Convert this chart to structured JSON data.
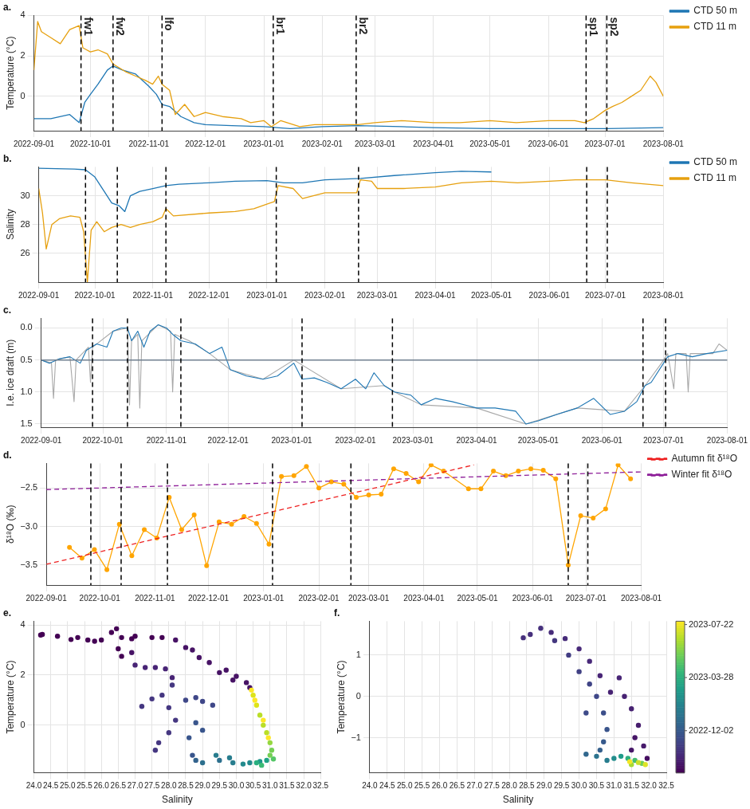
{
  "chart_data": [
    {
      "type": "line",
      "title": "a.",
      "ylabel": "Temperature (°C)",
      "xlim": [
        "2022-09-01",
        "2023-08-01"
      ],
      "xticks": [
        "2022-09-01",
        "2022-10-01",
        "2022-11-01",
        "2022-12-01",
        "2023-01-01",
        "2023-02-01",
        "2023-03-01",
        "2023-04-01",
        "2023-05-01",
        "2023-06-01",
        "2023-07-01",
        "2023-08-01"
      ],
      "ylim": [
        -1.7,
        4
      ],
      "yticks": [
        0,
        2,
        4
      ],
      "grid": true,
      "legend": "top right",
      "series": [
        {
          "name": "CTD 50 m",
          "color": "#1f77b4",
          "x": [
            "2022-09-01",
            "2022-09-10",
            "2022-09-20",
            "2022-09-25",
            "2022-09-28",
            "2022-10-01",
            "2022-10-05",
            "2022-10-10",
            "2022-10-13",
            "2022-10-18",
            "2022-10-25",
            "2022-11-01",
            "2022-11-05",
            "2022-11-08",
            "2022-11-12",
            "2022-11-18",
            "2022-11-25",
            "2022-12-01",
            "2022-12-15",
            "2023-01-01",
            "2023-01-15",
            "2023-02-01",
            "2023-02-20",
            "2023-03-15",
            "2023-04-01",
            "2023-05-01",
            "2023-06-01",
            "2023-07-01",
            "2023-08-01"
          ],
          "values": [
            -1.1,
            -1.1,
            -0.9,
            -1.3,
            -0.3,
            0.1,
            0.6,
            1.3,
            1.5,
            1.3,
            1.1,
            0.5,
            0.1,
            -0.4,
            -0.5,
            -1.0,
            -1.3,
            -1.4,
            -1.45,
            -1.5,
            -1.6,
            -1.5,
            -1.45,
            -1.5,
            -1.55,
            -1.6,
            -1.6,
            -1.6,
            -1.55
          ]
        },
        {
          "name": "CTD 11 m",
          "color": "#e6a00f",
          "x": [
            "2022-09-01",
            "2022-09-03",
            "2022-09-05",
            "2022-09-10",
            "2022-09-15",
            "2022-09-20",
            "2022-09-25",
            "2022-09-27",
            "2022-10-01",
            "2022-10-05",
            "2022-10-10",
            "2022-10-13",
            "2022-10-20",
            "2022-10-25",
            "2022-10-30",
            "2022-11-03",
            "2022-11-06",
            "2022-11-08",
            "2022-11-12",
            "2022-11-15",
            "2022-11-20",
            "2022-11-25",
            "2022-12-01",
            "2022-12-10",
            "2022-12-20",
            "2022-12-25",
            "2023-01-01",
            "2023-01-05",
            "2023-01-10",
            "2023-01-20",
            "2023-01-28",
            "2023-02-10",
            "2023-02-20",
            "2023-03-01",
            "2023-03-15",
            "2023-04-01",
            "2023-04-15",
            "2023-05-01",
            "2023-05-15",
            "2023-06-01",
            "2023-06-15",
            "2023-06-20",
            "2023-06-25",
            "2023-07-01",
            "2023-07-05",
            "2023-07-10",
            "2023-07-15",
            "2023-07-20",
            "2023-07-25",
            "2023-07-28",
            "2023-08-01"
          ],
          "values": [
            1.3,
            3.7,
            3.2,
            2.9,
            2.6,
            3.3,
            3.5,
            2.4,
            2.2,
            2.3,
            2.1,
            1.6,
            1.2,
            1.0,
            0.8,
            0.6,
            1.0,
            0.6,
            0.3,
            -0.9,
            -0.4,
            -1.0,
            -0.8,
            -1.0,
            -1.1,
            -1.3,
            -1.2,
            -1.5,
            -1.2,
            -1.5,
            -1.4,
            -1.4,
            -1.4,
            -1.3,
            -1.2,
            -1.3,
            -1.3,
            -1.2,
            -1.3,
            -1.2,
            -1.2,
            -1.3,
            -1.1,
            -0.7,
            -0.5,
            -0.3,
            0.0,
            0.3,
            1.0,
            0.7,
            0.0
          ]
        }
      ],
      "ref_lines": [
        {
          "axis": "x",
          "value": "2022-09-26",
          "label": "fw1",
          "color": "#000000",
          "line_style": "dashed"
        },
        {
          "axis": "x",
          "value": "2022-10-13",
          "label": "fw2",
          "color": "#000000",
          "line_style": "dashed"
        },
        {
          "axis": "x",
          "value": "2022-11-08",
          "label": "lfo",
          "color": "#000000",
          "line_style": "dashed"
        },
        {
          "axis": "x",
          "value": "2023-01-06",
          "label": "br1",
          "color": "#000000",
          "line_style": "dashed"
        },
        {
          "axis": "x",
          "value": "2023-02-19",
          "label": "br2",
          "color": "#000000",
          "line_style": "dashed"
        },
        {
          "axis": "x",
          "value": "2023-06-21",
          "label": "sp1",
          "color": "#000000",
          "line_style": "dashed"
        },
        {
          "axis": "x",
          "value": "2023-07-02",
          "label": "sp2",
          "color": "#000000",
          "line_style": "dashed"
        }
      ]
    },
    {
      "type": "line",
      "title": "b.",
      "ylabel": "Salinity",
      "xlim": [
        "2022-09-01",
        "2023-08-01"
      ],
      "xticks": [
        "2022-09-01",
        "2022-10-01",
        "2022-11-01",
        "2022-12-01",
        "2023-01-01",
        "2023-02-01",
        "2023-03-01",
        "2023-04-01",
        "2023-05-01",
        "2023-06-01",
        "2023-07-01",
        "2023-08-01"
      ],
      "ylim": [
        24,
        32
      ],
      "yticks": [
        26,
        28,
        30
      ],
      "grid": true,
      "legend": "top right",
      "series": [
        {
          "name": "CTD 50 m",
          "color": "#1f77b4",
          "x": [
            "2022-09-01",
            "2022-09-20",
            "2022-09-26",
            "2022-10-01",
            "2022-10-06",
            "2022-10-10",
            "2022-10-14",
            "2022-10-17",
            "2022-10-20",
            "2022-10-25",
            "2022-11-01",
            "2022-11-08",
            "2022-11-15",
            "2022-12-01",
            "2022-12-15",
            "2023-01-01",
            "2023-01-10",
            "2023-01-20",
            "2023-02-01",
            "2023-02-20",
            "2023-03-10",
            "2023-04-01",
            "2023-04-15",
            "2023-05-01"
          ],
          "values": [
            31.9,
            31.85,
            31.8,
            31.3,
            30.3,
            29.5,
            29.3,
            28.9,
            30.0,
            30.3,
            30.5,
            30.7,
            30.8,
            30.9,
            31.0,
            31.05,
            30.9,
            30.9,
            31.1,
            31.2,
            31.4,
            31.6,
            31.7,
            31.65
          ]
        },
        {
          "name": "CTD 11 m",
          "color": "#e6a00f",
          "x": [
            "2022-09-01",
            "2022-09-03",
            "2022-09-05",
            "2022-09-08",
            "2022-09-12",
            "2022-09-18",
            "2022-09-23",
            "2022-09-25",
            "2022-09-27",
            "2022-09-29",
            "2022-10-02",
            "2022-10-06",
            "2022-10-10",
            "2022-10-15",
            "2022-10-20",
            "2022-10-25",
            "2022-11-01",
            "2022-11-06",
            "2022-11-08",
            "2022-11-12",
            "2022-12-01",
            "2022-12-15",
            "2022-12-25",
            "2023-01-05",
            "2023-01-07",
            "2023-01-15",
            "2023-01-20",
            "2023-02-01",
            "2023-02-18",
            "2023-02-20",
            "2023-02-26",
            "2023-03-01",
            "2023-03-15",
            "2023-04-01",
            "2023-04-15",
            "2023-05-01",
            "2023-05-15",
            "2023-06-01",
            "2023-06-15",
            "2023-07-01",
            "2023-07-15",
            "2023-08-01"
          ],
          "values": [
            30.5,
            28.8,
            26.3,
            28.0,
            28.4,
            28.6,
            28.5,
            27.5,
            24.0,
            27.6,
            28.2,
            27.5,
            27.8,
            28.0,
            27.8,
            28.0,
            28.2,
            28.5,
            29.1,
            28.6,
            28.8,
            28.9,
            29.1,
            29.6,
            30.7,
            30.5,
            29.8,
            30.2,
            30.2,
            31.1,
            31.0,
            30.5,
            30.5,
            30.6,
            30.9,
            31.0,
            30.9,
            31.0,
            31.1,
            31.1,
            30.9,
            30.7
          ]
        }
      ],
      "ref_lines": [
        {
          "axis": "x",
          "value": "2022-09-26",
          "color": "#000000",
          "line_style": "dashed"
        },
        {
          "axis": "x",
          "value": "2022-10-13",
          "color": "#000000",
          "line_style": "dashed"
        },
        {
          "axis": "x",
          "value": "2022-11-08",
          "color": "#000000",
          "line_style": "dashed"
        },
        {
          "axis": "x",
          "value": "2023-01-06",
          "color": "#000000",
          "line_style": "dashed"
        },
        {
          "axis": "x",
          "value": "2023-02-19",
          "color": "#000000",
          "line_style": "dashed"
        },
        {
          "axis": "x",
          "value": "2023-06-21",
          "color": "#000000",
          "line_style": "dashed"
        },
        {
          "axis": "x",
          "value": "2023-07-02",
          "color": "#000000",
          "line_style": "dashed"
        }
      ]
    },
    {
      "type": "line",
      "title": "c.",
      "ylabel": "I.e. ice draft (m)",
      "xlim": [
        "2022-09-01",
        "2023-08-01"
      ],
      "xticks": [
        "2022-09-01",
        "2022-10-01",
        "2022-11-01",
        "2022-12-01",
        "2023-01-01",
        "2023-02-01",
        "2023-03-01",
        "2023-04-01",
        "2023-05-01",
        "2023-06-01",
        "2023-07-01",
        "2023-08-01"
      ],
      "ylim": [
        1.55,
        -0.15
      ],
      "yticks": [
        {
          "value": 0,
          "label": "0.0"
        },
        0.5,
        {
          "value": 1,
          "label": "1.0"
        },
        1.5
      ],
      "grid": true,
      "series": [
        {
          "color": "#a8a8a8",
          "x": [
            "2022-09-01",
            "2022-09-06",
            "2022-09-07",
            "2022-09-08",
            "2022-09-15",
            "2022-09-17",
            "2022-09-18",
            "2022-09-24",
            "2022-09-25",
            "2022-09-26",
            "2022-10-06",
            "2022-10-13",
            "2022-10-14",
            "2022-10-15",
            "2022-10-18",
            "2022-10-19",
            "2022-10-20",
            "2022-10-28",
            "2022-11-03",
            "2022-11-04",
            "2022-11-05",
            "2022-11-12",
            "2022-11-22",
            "2022-12-02",
            "2022-12-18",
            "2023-01-02",
            "2023-01-25",
            "2023-02-15",
            "2023-02-20",
            "2023-03-05",
            "2023-04-01",
            "2023-04-25",
            "2023-05-20",
            "2023-06-12",
            "2023-06-22",
            "2023-06-30",
            "2023-07-03",
            "2023-07-06",
            "2023-07-07",
            "2023-07-12",
            "2023-07-13",
            "2023-07-14",
            "2023-07-25",
            "2023-07-28",
            "2023-08-01"
          ],
          "values": [
            0.5,
            0.55,
            1.1,
            0.5,
            0.45,
            1.15,
            0.5,
            0.3,
            0.85,
            0.3,
            0.05,
            0.0,
            1.2,
            0.2,
            0.1,
            1.25,
            0.2,
            -0.05,
            0.05,
            1.0,
            0.1,
            0.2,
            0.4,
            0.65,
            0.8,
            0.5,
            0.95,
            0.9,
            1.0,
            1.2,
            1.25,
            1.5,
            1.25,
            1.3,
            0.9,
            0.55,
            0.4,
            0.95,
            0.4,
            0.4,
            1.0,
            0.4,
            0.4,
            0.25,
            0.35
          ]
        },
        {
          "color": "#1f77b4",
          "x": [
            "2022-09-01",
            "2022-09-05",
            "2022-09-10",
            "2022-09-15",
            "2022-09-20",
            "2022-09-23",
            "2022-09-28",
            "2022-10-03",
            "2022-10-06",
            "2022-10-10",
            "2022-10-13",
            "2022-10-15",
            "2022-10-18",
            "2022-10-21",
            "2022-10-24",
            "2022-10-28",
            "2022-11-01",
            "2022-11-04",
            "2022-11-08",
            "2022-11-15",
            "2022-11-22",
            "2022-11-28",
            "2022-12-02",
            "2022-12-10",
            "2022-12-18",
            "2022-12-25",
            "2023-01-02",
            "2023-01-06",
            "2023-01-12",
            "2023-01-18",
            "2023-01-25",
            "2023-02-01",
            "2023-02-06",
            "2023-02-10",
            "2023-02-15",
            "2023-02-20",
            "2023-02-28",
            "2023-03-05",
            "2023-03-12",
            "2023-03-20",
            "2023-04-01",
            "2023-04-10",
            "2023-04-20",
            "2023-04-25",
            "2023-05-01",
            "2023-05-10",
            "2023-05-20",
            "2023-05-28",
            "2023-06-05",
            "2023-06-12",
            "2023-06-18",
            "2023-06-22",
            "2023-06-25",
            "2023-06-30",
            "2023-07-03",
            "2023-07-08",
            "2023-07-15",
            "2023-07-22",
            "2023-08-01"
          ],
          "values": [
            0.5,
            0.55,
            0.48,
            0.45,
            0.55,
            0.35,
            0.25,
            0.3,
            0.05,
            0.0,
            0.0,
            0.2,
            0.05,
            0.3,
            0.05,
            -0.05,
            0.0,
            0.1,
            0.2,
            0.25,
            0.4,
            0.3,
            0.65,
            0.75,
            0.8,
            0.75,
            0.55,
            0.8,
            0.78,
            0.85,
            0.95,
            0.8,
            0.95,
            0.7,
            0.9,
            1.0,
            1.05,
            1.2,
            1.1,
            1.15,
            1.25,
            1.25,
            1.3,
            1.5,
            1.45,
            1.35,
            1.25,
            1.1,
            1.35,
            1.3,
            1.15,
            0.9,
            0.85,
            0.6,
            0.45,
            0.4,
            0.45,
            0.4,
            0.35
          ]
        }
      ],
      "ref_lines": [
        {
          "axis": "y",
          "value": 0.5,
          "color": "#708090",
          "line_style": "solid"
        },
        {
          "axis": "x",
          "value": "2022-09-26",
          "color": "#000000",
          "line_style": "dashed"
        },
        {
          "axis": "x",
          "value": "2022-10-13",
          "color": "#000000",
          "line_style": "dashed"
        },
        {
          "axis": "x",
          "value": "2022-11-08",
          "color": "#000000",
          "line_style": "dashed"
        },
        {
          "axis": "x",
          "value": "2023-01-06",
          "color": "#000000",
          "line_style": "dashed"
        },
        {
          "axis": "x",
          "value": "2023-02-19",
          "color": "#000000",
          "line_style": "dashed"
        },
        {
          "axis": "x",
          "value": "2023-06-21",
          "color": "#000000",
          "line_style": "dashed"
        },
        {
          "axis": "x",
          "value": "2023-07-02",
          "color": "#000000",
          "line_style": "dashed"
        }
      ]
    },
    {
      "type": "line",
      "title": "d.",
      "ylabel": "δ¹⁸O (‰)",
      "xlim": [
        "2022-09-01",
        "2023-08-01"
      ],
      "xticks": [
        "2022-09-01",
        "2022-10-01",
        "2022-11-01",
        "2022-12-01",
        "2023-01-01",
        "2023-02-01",
        "2023-03-01",
        "2023-04-01",
        "2023-05-01",
        "2023-06-01",
        "2023-07-01",
        "2023-08-01"
      ],
      "ylim": [
        -3.76,
        -2.18
      ],
      "yticks": [
        {
          "value": -3.5,
          "label": "−3.5"
        },
        {
          "value": -3,
          "label": "−3.0"
        },
        {
          "value": -2.5,
          "label": "−2.5"
        }
      ],
      "grid": true,
      "legend": "top right",
      "series": [
        {
          "color": "#ffa500",
          "marker": "circle",
          "line_style": "solid",
          "x": [
            "2022-09-14",
            "2022-09-21",
            "2022-09-28",
            "2022-10-05",
            "2022-10-12",
            "2022-10-19",
            "2022-10-26",
            "2022-11-02",
            "2022-11-09",
            "2022-11-16",
            "2022-11-23",
            "2022-11-30",
            "2022-12-07",
            "2022-12-14",
            "2022-12-21",
            "2022-12-28",
            "2023-01-04",
            "2023-01-11",
            "2023-01-18",
            "2023-01-25",
            "2023-02-01",
            "2023-02-08",
            "2023-02-15",
            "2023-02-22",
            "2023-03-01",
            "2023-03-08",
            "2023-03-15",
            "2023-03-22",
            "2023-03-29",
            "2023-04-05",
            "2023-04-12",
            "2023-04-26",
            "2023-05-03",
            "2023-05-10",
            "2023-05-17",
            "2023-05-24",
            "2023-05-31",
            "2023-06-07",
            "2023-06-14",
            "2023-06-21",
            "2023-06-28",
            "2023-07-05",
            "2023-07-12",
            "2023-07-19",
            "2023-07-26"
          ],
          "values": [
            -3.27,
            -3.41,
            -3.3,
            -3.56,
            -2.97,
            -3.38,
            -3.04,
            -3.15,
            -2.62,
            -3.04,
            -2.85,
            -3.51,
            -2.94,
            -2.97,
            -2.87,
            -2.96,
            -3.23,
            -2.35,
            -2.34,
            -2.22,
            -2.5,
            -2.42,
            -2.45,
            -2.62,
            -2.59,
            -2.58,
            -2.25,
            -2.31,
            -2.42,
            -2.2,
            -2.28,
            -2.51,
            -2.51,
            -2.28,
            -2.34,
            -2.28,
            -2.25,
            -2.27,
            -2.38,
            -3.5,
            -2.86,
            -2.89,
            -2.77,
            -2.2,
            -2.38
          ]
        },
        {
          "name": "Autumn fit δ¹⁸O",
          "color": "#ee2222",
          "marker": "none",
          "line_style": "dashed",
          "x": [
            "2022-09-01",
            "2023-04-29"
          ],
          "values": [
            -3.49,
            -2.2
          ]
        },
        {
          "name": "Winter fit δ¹⁸O",
          "color": "#8e1f99",
          "marker": "none",
          "line_style": "dashed",
          "x": [
            "2022-09-01",
            "2023-08-01"
          ],
          "values": [
            -2.52,
            -2.29
          ]
        }
      ],
      "ref_lines": [
        {
          "axis": "x",
          "value": "2022-09-26",
          "color": "#000000",
          "line_style": "dashed"
        },
        {
          "axis": "x",
          "value": "2022-10-13",
          "color": "#000000",
          "line_style": "dashed"
        },
        {
          "axis": "x",
          "value": "2022-11-08",
          "color": "#000000",
          "line_style": "dashed"
        },
        {
          "axis": "x",
          "value": "2023-01-06",
          "color": "#000000",
          "line_style": "dashed"
        },
        {
          "axis": "x",
          "value": "2023-02-19",
          "color": "#000000",
          "line_style": "dashed"
        },
        {
          "axis": "x",
          "value": "2023-06-21",
          "color": "#000000",
          "line_style": "dashed"
        },
        {
          "axis": "x",
          "value": "2023-07-02",
          "color": "#000000",
          "line_style": "dashed"
        }
      ]
    },
    {
      "type": "scatter",
      "title": "e.",
      "xlabel": "Salinity",
      "ylabel": "Temperature (°C)",
      "xlim": [
        24,
        32.5
      ],
      "xticks": [
        {
          "value": 24,
          "label": "24.0"
        },
        24.5,
        {
          "value": 25,
          "label": "25.0"
        },
        25.5,
        {
          "value": 26,
          "label": "26.0"
        },
        26.5,
        {
          "value": 27,
          "label": "27.0"
        },
        27.5,
        {
          "value": 28,
          "label": "28.0"
        },
        28.5,
        {
          "value": 29,
          "label": "29.0"
        },
        29.5,
        {
          "value": 30,
          "label": "30.0"
        },
        30.5,
        {
          "value": 31,
          "label": "31.0"
        },
        31.5,
        {
          "value": 32,
          "label": "32.0"
        },
        32.5
      ],
      "ylim": [
        -1.9,
        4.15
      ],
      "yticks": [
        0,
        2,
        4
      ],
      "grid": true,
      "series": [
        {
          "x": [
            24.2,
            24.25,
            24.7,
            25.1,
            25.3,
            25.6,
            25.8,
            26.0,
            26.3,
            26.45,
            26.6,
            26.9,
            27.0,
            27.5,
            27.8,
            28.2,
            28.5,
            28.7,
            28.9,
            29.2,
            29.5,
            29.7,
            29.9,
            30.0,
            30.3,
            30.4,
            26.6,
            26.9,
            26.5,
            27.0,
            27.3,
            27.6,
            27.9,
            28.1,
            28.1,
            27.8,
            27.5,
            27.2,
            28.0,
            28.2,
            28.0,
            27.7,
            27.6,
            28.5,
            28.8,
            29.0,
            29.3,
            28.8,
            29.0,
            28.6,
            28.7,
            28.8,
            29.0,
            29.5,
            29.8,
            29.4,
            29.9,
            30.2,
            30.4,
            30.7,
            30.9,
            30.6,
            30.75,
            31.1,
            31.0,
            31.05,
            31.0,
            30.9,
            30.8,
            30.7,
            30.6,
            30.5,
            30.45,
            30.55,
            30.8,
            30.95
          ],
          "values": [
            3.6,
            3.62,
            3.55,
            3.42,
            3.5,
            3.4,
            3.35,
            3.4,
            3.7,
            3.85,
            3.5,
            3.45,
            3.55,
            3.5,
            3.5,
            3.4,
            3.1,
            3.0,
            2.7,
            2.5,
            2.1,
            2.2,
            1.8,
            1.95,
            1.7,
            1.5,
            2.75,
            2.9,
            3.05,
            2.4,
            2.3,
            2.3,
            2.25,
            1.9,
            1.6,
            1.2,
            1.05,
            0.75,
            0.7,
            0.2,
            -0.3,
            -0.7,
            -1.0,
            1.0,
            1.1,
            0.95,
            0.8,
            0.1,
            -0.2,
            -0.5,
            -1.2,
            -1.4,
            -1.5,
            -1.4,
            -1.3,
            -1.2,
            -1.5,
            -1.55,
            -1.5,
            -1.45,
            -1.4,
            -1.5,
            -1.6,
            -1.35,
            -1.2,
            -1.0,
            -0.7,
            -0.3,
            0.0,
            0.4,
            0.8,
            1.2,
            1.4,
            1.0,
            0.2,
            -0.5
          ],
          "colors": [
            "#440154",
            "#440154",
            "#440154",
            "#440154",
            "#440154",
            "#440154",
            "#440154",
            "#440154",
            "#440154",
            "#440154",
            "#440154",
            "#440154",
            "#440154",
            "#440154",
            "#440154",
            "#471365",
            "#471365",
            "#471365",
            "#471365",
            "#471365",
            "#471365",
            "#471365",
            "#471365",
            "#471365",
            "#471365",
            "#471365",
            "#440154",
            "#471365",
            "#440154",
            "#482475",
            "#482475",
            "#482475",
            "#482475",
            "#482475",
            "#453781",
            "#453781",
            "#453781",
            "#453781",
            "#453781",
            "#453781",
            "#453781",
            "#453781",
            "#453781",
            "#3f4788",
            "#3f4788",
            "#3f4788",
            "#3f4788",
            "#39558c",
            "#39558c",
            "#39558c",
            "#39558c",
            "#33638d",
            "#2d708e",
            "#2d708e",
            "#287d8e",
            "#287d8e",
            "#287d8e",
            "#238a8d",
            "#238a8d",
            "#1f968b",
            "#20a386",
            "#29af7f",
            "#3bbb75",
            "#55c667",
            "#75d054",
            "#75d054",
            "#95d840",
            "#bade28",
            "#bade28",
            "#bade28",
            "#dde318",
            "#dde318",
            "#fde725",
            "#fde725",
            "#fde725",
            "#fde725"
          ]
        }
      ]
    },
    {
      "type": "scatter",
      "title": "f.",
      "xlabel": "Salinity",
      "ylabel": "Temperature (°C)",
      "xlim": [
        24,
        32.5
      ],
      "xticks": [
        {
          "value": 24,
          "label": "24.0"
        },
        24.5,
        {
          "value": 25,
          "label": "25.0"
        },
        25.5,
        {
          "value": 26,
          "label": "26.0"
        },
        26.5,
        {
          "value": 27,
          "label": "27.0"
        },
        27.5,
        {
          "value": 28,
          "label": "28.0"
        },
        28.5,
        {
          "value": 29,
          "label": "29.0"
        },
        29.5,
        {
          "value": 30,
          "label": "30.0"
        },
        30.5,
        {
          "value": 31,
          "label": "31.0"
        },
        31.5,
        {
          "value": 32,
          "label": "32.0"
        },
        32.5
      ],
      "ylim": [
        -1.85,
        1.82
      ],
      "yticks": [
        {
          "value": -1,
          "label": "−1"
        },
        0,
        1
      ],
      "grid": true,
      "clim": [
        2022.666,
        2023.573
      ],
      "cticks": [
        {
          "value": 2022.918,
          "label": "2022-12-02"
        },
        {
          "value": 2023.236,
          "label": "2023-03-28"
        },
        {
          "value": 2023.553,
          "label": "2023-07-22"
        }
      ],
      "series": [
        {
          "x": [
            31.95,
            31.85,
            31.7,
            31.5,
            31.3,
            31.15,
            30.9,
            30.6,
            30.3,
            30.0,
            29.6,
            29.2,
            28.9,
            28.6,
            28.4,
            31.5,
            31.6,
            29.3,
            29.7,
            30.0,
            30.3,
            30.5,
            30.7,
            30.2,
            30.8,
            30.7,
            30.6,
            30.2,
            30.5,
            30.8,
            31.0,
            31.2,
            31.4,
            31.6,
            31.8,
            31.5,
            31.7,
            31.9,
            31.45
          ],
          "values": [
            -1.5,
            -1.2,
            -0.7,
            -0.3,
            0.0,
            0.45,
            0.1,
            0.5,
            0.85,
            1.15,
            1.4,
            1.55,
            1.65,
            1.5,
            1.42,
            -1.3,
            -1.0,
            1.35,
            1.0,
            0.6,
            0.3,
            0.0,
            -0.4,
            -0.4,
            -0.8,
            -1.1,
            -1.3,
            -1.4,
            -1.45,
            -1.55,
            -1.5,
            -1.45,
            -1.5,
            -1.55,
            -1.62,
            -1.65,
            -1.6,
            -1.65,
            -1.58
          ],
          "cvalues": [
            2022.7,
            2022.73,
            2022.74,
            2022.75,
            2022.75,
            2022.76,
            2022.75,
            2022.76,
            2022.77,
            2022.77,
            2022.78,
            2022.78,
            2022.79,
            2022.79,
            2022.79,
            2022.72,
            2022.72,
            2022.81,
            2022.83,
            2022.84,
            2022.85,
            2022.86,
            2022.88,
            2022.87,
            2022.9,
            2022.92,
            2022.94,
            2022.97,
            2023.01,
            2023.05,
            2023.11,
            2023.16,
            2023.24,
            2023.3,
            2023.37,
            2023.45,
            2023.5,
            2023.53,
            2023.56
          ]
        }
      ]
    }
  ]
}
